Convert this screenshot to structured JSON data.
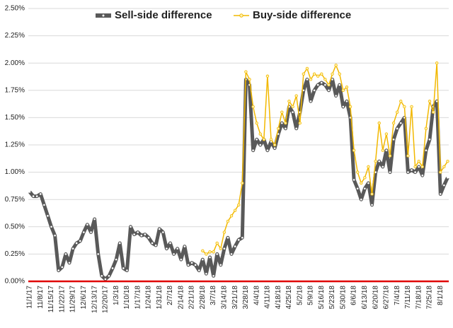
{
  "chart_data": {
    "type": "line",
    "categories": [
      "11/1/17",
      null,
      null,
      "11/8/17",
      null,
      null,
      "11/15/17",
      null,
      null,
      "11/22/17",
      null,
      null,
      "11/29/17",
      null,
      null,
      "12/6/17",
      null,
      null,
      "12/13/17",
      null,
      null,
      "12/20/17",
      null,
      null,
      "1/3/18",
      null,
      null,
      "1/10/18",
      null,
      null,
      "1/17/18",
      null,
      null,
      "1/24/18",
      null,
      null,
      "1/31/18",
      null,
      null,
      "2/7/18",
      null,
      null,
      "2/14/18",
      null,
      null,
      "2/21/18",
      null,
      null,
      "2/28/18",
      null,
      null,
      "3/7/18",
      null,
      null,
      "3/14/18",
      null,
      null,
      "3/21/18",
      null,
      null,
      "3/28/18",
      null,
      null,
      "4/4/18",
      null,
      null,
      "4/11/18",
      null,
      null,
      "4/18/18",
      null,
      null,
      "4/25/18",
      null,
      null,
      "5/2/18",
      null,
      null,
      "5/9/18",
      null,
      null,
      "5/16/18",
      null,
      null,
      "5/23/18",
      null,
      null,
      "5/30/18",
      null,
      null,
      "6/6/18",
      null,
      null,
      "6/13/18",
      null,
      null,
      "6/20/18",
      null,
      null,
      "6/27/18",
      null,
      null,
      "7/4/18",
      null,
      null,
      "7/11/18",
      null,
      null,
      "7/18/18",
      null,
      null,
      "7/25/18",
      null,
      null,
      "8/1/18",
      null,
      null
    ],
    "series": [
      {
        "name": "Sell-side difference",
        "color": "#595959",
        "values": [
          0.82,
          0.78,
          0.78,
          0.8,
          0.7,
          0.6,
          0.5,
          0.42,
          0.1,
          0.13,
          0.25,
          0.17,
          0.3,
          0.35,
          0.37,
          0.45,
          0.52,
          0.45,
          0.57,
          0.25,
          0.05,
          0.02,
          0.05,
          0.12,
          0.2,
          0.35,
          0.12,
          0.1,
          0.5,
          0.43,
          0.45,
          0.42,
          0.43,
          0.4,
          0.35,
          0.33,
          0.48,
          0.45,
          0.3,
          0.35,
          0.25,
          0.3,
          0.2,
          0.32,
          0.15,
          0.17,
          0.15,
          0.1,
          0.2,
          0.07,
          0.22,
          0.05,
          0.25,
          0.15,
          0.3,
          0.4,
          0.25,
          0.32,
          0.38,
          0.4,
          1.85,
          1.8,
          1.2,
          1.3,
          1.25,
          1.3,
          1.2,
          1.28,
          1.22,
          1.35,
          1.45,
          1.4,
          1.6,
          1.55,
          1.4,
          1.55,
          1.75,
          1.85,
          1.65,
          1.75,
          1.8,
          1.82,
          1.8,
          1.75,
          1.85,
          1.7,
          1.8,
          1.6,
          1.65,
          1.5,
          0.93,
          0.85,
          0.75,
          0.85,
          0.9,
          0.7,
          1.0,
          1.1,
          1.05,
          1.2,
          1.0,
          1.3,
          1.4,
          1.45,
          1.5,
          1.0,
          1.02,
          1.0,
          1.05,
          0.97,
          1.2,
          1.3,
          1.6,
          1.65,
          0.8,
          0.88,
          0.95
        ]
      },
      {
        "name": "Buy-side difference",
        "color": "#f2b800",
        "values": [
          null,
          null,
          null,
          null,
          null,
          null,
          null,
          null,
          null,
          null,
          null,
          null,
          null,
          null,
          null,
          null,
          null,
          null,
          null,
          null,
          null,
          null,
          null,
          null,
          null,
          null,
          null,
          null,
          null,
          null,
          null,
          null,
          null,
          null,
          null,
          null,
          null,
          null,
          null,
          null,
          null,
          null,
          null,
          null,
          null,
          null,
          null,
          null,
          0.28,
          0.25,
          0.27,
          0.27,
          0.35,
          0.3,
          0.45,
          0.55,
          0.6,
          0.65,
          0.7,
          0.9,
          1.92,
          1.85,
          1.6,
          1.45,
          1.35,
          1.3,
          1.88,
          1.3,
          1.25,
          1.4,
          1.55,
          1.45,
          1.65,
          1.6,
          1.7,
          1.45,
          1.9,
          1.95,
          1.85,
          1.9,
          1.88,
          1.9,
          1.85,
          1.8,
          1.9,
          1.98,
          1.9,
          1.75,
          1.78,
          1.6,
          1.2,
          1.0,
          0.9,
          0.95,
          1.05,
          0.8,
          1.1,
          1.45,
          1.2,
          1.35,
          1.15,
          1.45,
          1.55,
          1.65,
          1.6,
          1.15,
          1.6,
          1.05,
          1.1,
          1.05,
          1.4,
          1.65,
          1.55,
          2.0,
          1.0,
          1.05,
          1.1
        ]
      }
    ],
    "ylim": [
      0,
      2.5
    ],
    "yticks": [
      {
        "value": 0,
        "label": "0.00%"
      },
      {
        "value": 0.25,
        "label": "0.25%"
      },
      {
        "value": 0.5,
        "label": "0.50%"
      },
      {
        "value": 0.75,
        "label": "0.75%"
      },
      {
        "value": 1,
        "label": "1.00%"
      },
      {
        "value": 1.25,
        "label": "1.25%"
      },
      {
        "value": 1.5,
        "label": "1.50%"
      },
      {
        "value": 1.75,
        "label": "1.75%"
      },
      {
        "value": 2,
        "label": "2.00%"
      },
      {
        "value": 2.25,
        "label": "2.25%"
      },
      {
        "value": 2.5,
        "label": "2.50%"
      }
    ],
    "grid": true
  }
}
